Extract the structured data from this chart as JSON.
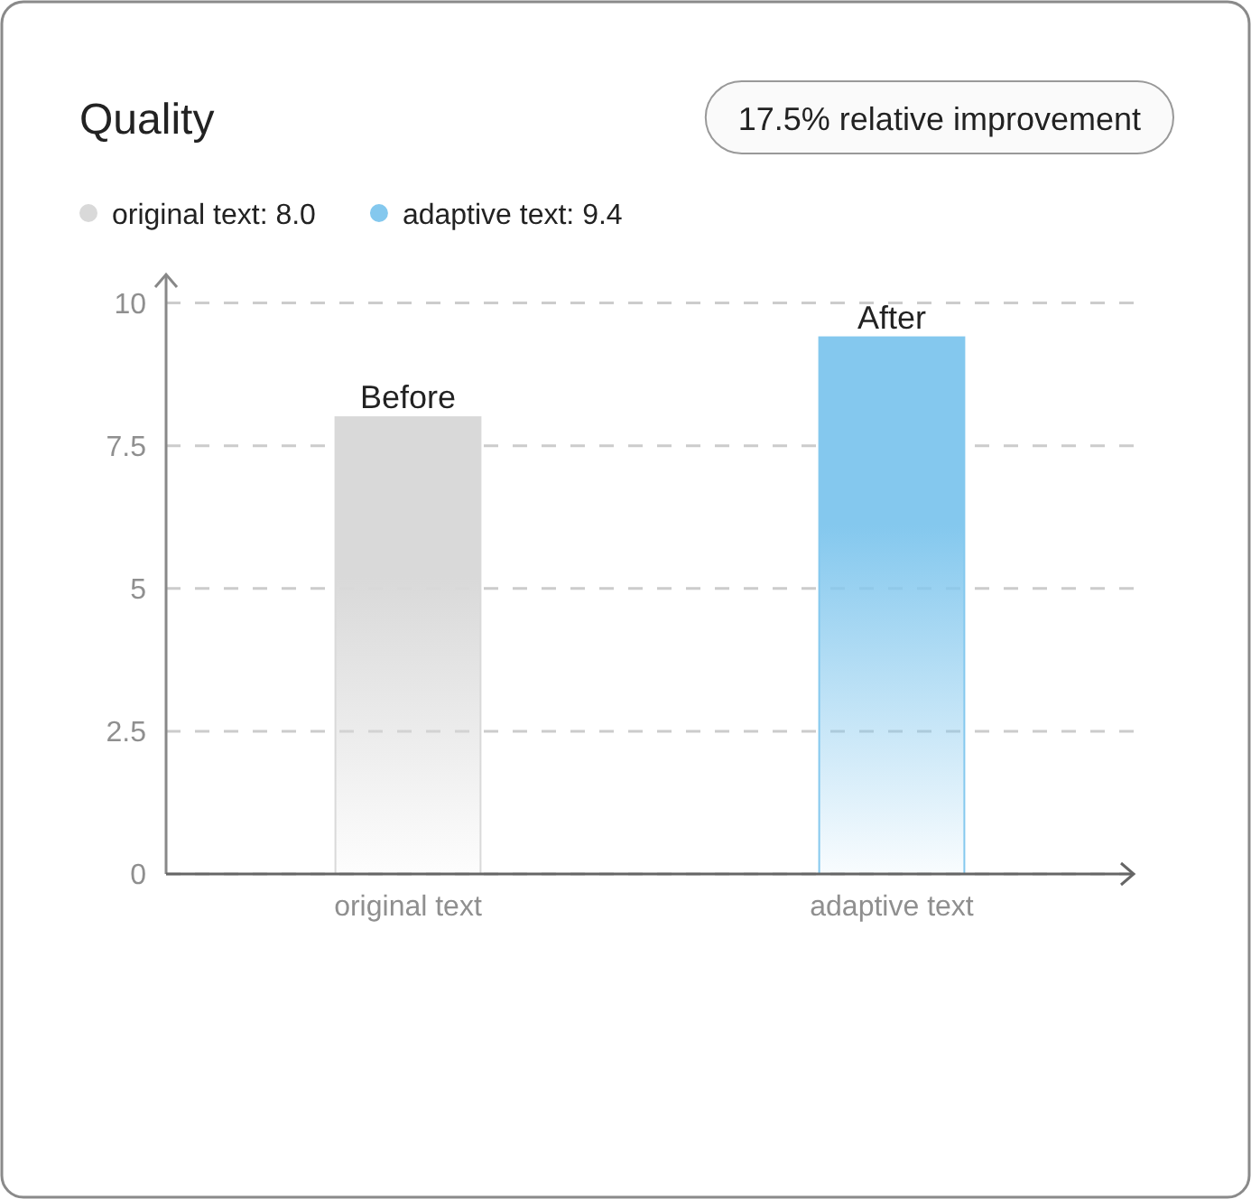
{
  "chart_data": {
    "type": "bar",
    "title": "Quality",
    "annotations": [
      "17.5% relative improvement",
      {
        "text": "Before",
        "x": "original text",
        "y": 8.0
      },
      {
        "text": "After",
        "x": "adaptive text",
        "y": 9.4
      }
    ],
    "categories": [
      "original text",
      "adaptive text"
    ],
    "series": [
      {
        "name": "original text: 8.0",
        "color": "#d9d9d9",
        "values": [
          8.0,
          null
        ]
      },
      {
        "name": "adaptive text: 9.4",
        "color": "#84c8ee",
        "values": [
          null,
          9.4
        ]
      }
    ],
    "stacked": true,
    "ylim": [
      0,
      10.5
    ],
    "yticks": [
      0,
      2.5,
      5,
      7.5,
      10
    ],
    "grid": "y",
    "legend": "top left"
  }
}
